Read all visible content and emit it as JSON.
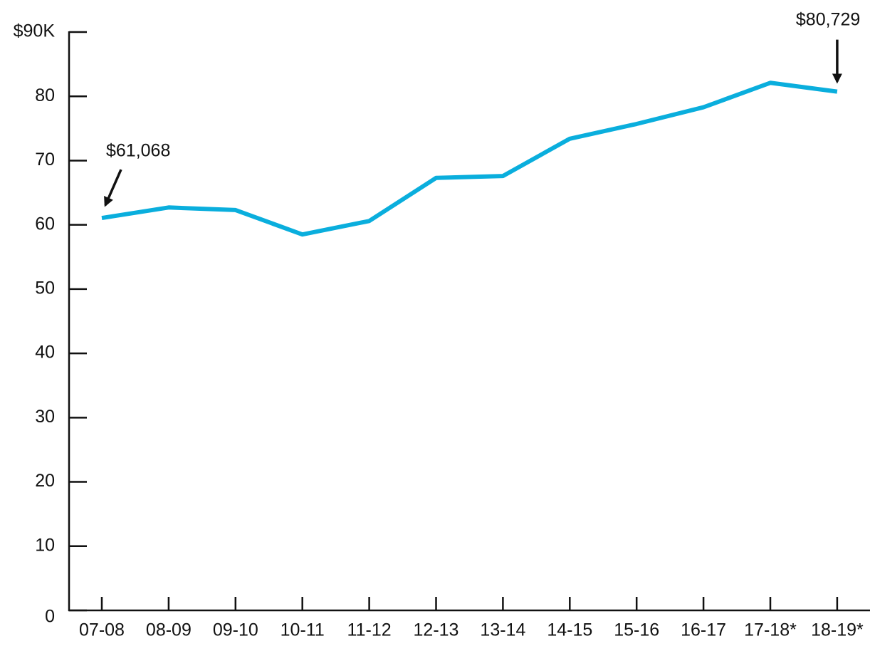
{
  "chart_data": {
    "type": "line",
    "categories": [
      "07-08",
      "08-09",
      "09-10",
      "10-11",
      "11-12",
      "12-13",
      "13-14",
      "14-15",
      "15-16",
      "16-17",
      "17-18*",
      "18-19*"
    ],
    "series": [
      {
        "color": "#0aaedd",
        "values": [
          61.068,
          62.7,
          62.3,
          58.5,
          60.6,
          67.3,
          67.6,
          73.4,
          75.7,
          78.3,
          82.1,
          80.729
        ],
        "value_labels": [
          "$61,068",
          null,
          null,
          null,
          null,
          null,
          null,
          null,
          null,
          null,
          null,
          "$80,729"
        ]
      }
    ],
    "ylim": [
      0,
      90
    ],
    "yticks": [
      0,
      10,
      20,
      30,
      40,
      50,
      60,
      70,
      80,
      {
        "value": 90,
        "label": "$90K"
      }
    ]
  }
}
